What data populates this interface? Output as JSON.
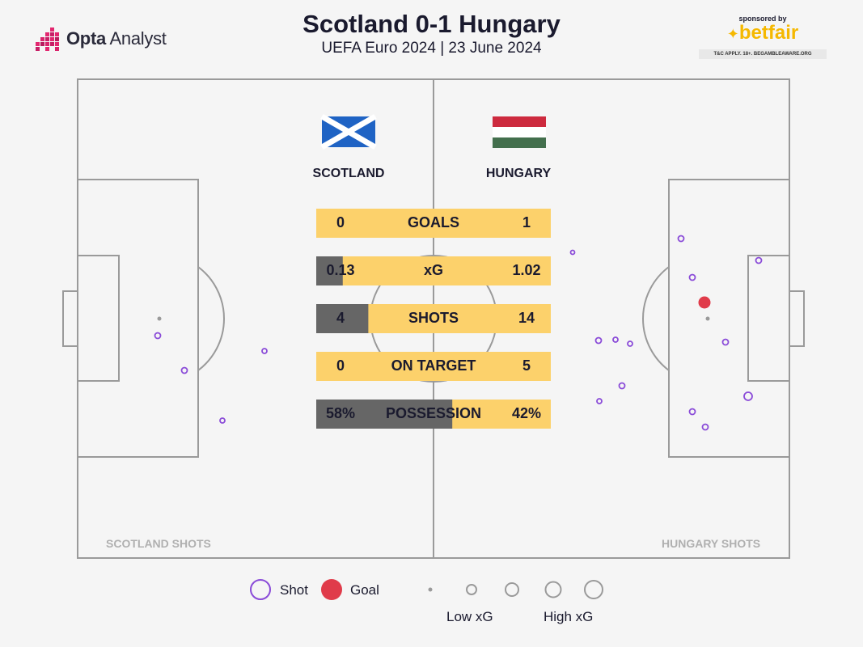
{
  "brand": {
    "name_bold": "Opta",
    "name_light": "Analyst"
  },
  "title": "Scotland 0-1 Hungary",
  "subtitle": "UEFA Euro 2024 | 23 June 2024",
  "sponsor": {
    "by": "sponsored by",
    "name": "betfair",
    "terms": "T&C APPLY. 18+. BEGAMBLEAWARE.ORG"
  },
  "teams": {
    "home": "SCOTLAND",
    "away": "HUNGARY"
  },
  "colors": {
    "bar_light": "#fcd16b",
    "bar_dark": "#666666",
    "shot": "#8a4bd8",
    "goal": "#e03b4a",
    "line": "#9a9a9a"
  },
  "chart_data": {
    "type": "table",
    "stats": [
      {
        "label": "GOALS",
        "home": "0",
        "away": "1",
        "home_share": 0
      },
      {
        "label": "xG",
        "home": "0.13",
        "away": "1.02",
        "home_share": 0.113
      },
      {
        "label": "SHOTS",
        "home": "4",
        "away": "14",
        "home_share": 0.222
      },
      {
        "label": "ON TARGET",
        "home": "0",
        "away": "5",
        "home_share": 0
      },
      {
        "label": "POSSESSION",
        "home": "58%",
        "away": "42%",
        "home_share": 0.58
      }
    ],
    "shot_maps": [
      {
        "label": "SCOTLAND SHOTS",
        "team": "home"
      },
      {
        "label": "HUNGARY SHOTS",
        "team": "away"
      }
    ]
  },
  "legend": {
    "shot": "Shot",
    "goal": "Goal",
    "low": "Low xG",
    "high": "High xG"
  }
}
